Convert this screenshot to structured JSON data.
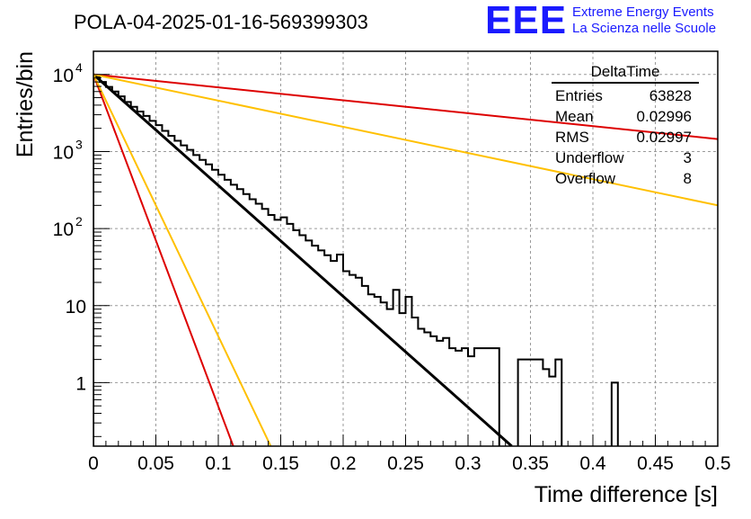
{
  "title": "POLA-04-2025-01-16-569399303",
  "branding": {
    "logo": "EEE",
    "line1": "Extreme Energy Events",
    "line2": "La Scienza nelle Scuole",
    "color": "#1a1aff"
  },
  "stats": {
    "name": "DeltaTime",
    "rows": [
      {
        "label": "Entries",
        "value": "63828"
      },
      {
        "label": "Mean",
        "value": "0.02996"
      },
      {
        "label": "RMS",
        "value": "0.02997"
      },
      {
        "label": "Underflow",
        "value": "3"
      },
      {
        "label": "Overflow",
        "value": "8"
      }
    ]
  },
  "chart_data": {
    "type": "histogram",
    "title": "POLA-04-2025-01-16-569399303",
    "xlabel": "Time difference [s]",
    "ylabel": "Entries/bin",
    "xlim": [
      0,
      0.5
    ],
    "ylim": [
      0.15,
      20000
    ],
    "yscale": "log",
    "grid": true,
    "bin_width": 0.005,
    "x_ticks": [
      "0",
      "0.05",
      "0.1",
      "0.15",
      "0.2",
      "0.25",
      "0.3",
      "0.35",
      "0.4",
      "0.45",
      "0.5"
    ],
    "y_ticks": [
      {
        "value": 1,
        "label": "1"
      },
      {
        "value": 10,
        "label": "10"
      },
      {
        "value": 100,
        "label": "10",
        "exp": "2"
      },
      {
        "value": 1000,
        "label": "10",
        "exp": "3"
      },
      {
        "value": 10000,
        "label": "10",
        "exp": "4"
      }
    ],
    "histogram": {
      "color": "#000000",
      "counts": [
        9200,
        8000,
        6900,
        6000,
        5200,
        4400,
        3800,
        3300,
        2900,
        2500,
        2200,
        1850,
        1600,
        1380,
        1200,
        1050,
        900,
        780,
        680,
        580,
        500,
        430,
        370,
        325,
        280,
        240,
        210,
        180,
        150,
        130,
        140,
        115,
        95,
        82,
        70,
        60,
        52,
        45,
        38,
        46,
        28,
        25,
        23,
        18,
        14,
        13,
        11,
        9,
        16,
        8,
        13,
        7,
        5,
        4.5,
        4,
        3.5,
        3.8,
        2.8,
        2.6,
        2.8,
        2.2,
        2.8,
        2.8,
        2.8,
        2.8,
        0,
        0,
        0,
        2,
        2,
        2,
        2,
        1.5,
        1.2,
        2,
        0,
        0,
        0,
        0,
        0,
        0,
        0,
        0,
        1,
        0,
        0,
        0,
        0,
        0,
        0,
        0,
        0,
        0,
        0,
        0,
        0,
        0,
        0,
        0,
        0
      ]
    },
    "lines": [
      {
        "color": "#000000",
        "x": [
          0,
          0.335
        ],
        "y": [
          10000,
          0.15
        ]
      },
      {
        "color": "#dd0000",
        "x": [
          0,
          0.112
        ],
        "y": [
          10000,
          0.15
        ]
      },
      {
        "color": "#ffc000",
        "x": [
          0,
          0.142
        ],
        "y": [
          10000,
          0.15
        ]
      },
      {
        "color": "#dd0000",
        "x": [
          0,
          0.5
        ],
        "y": [
          10000,
          1450
        ]
      },
      {
        "color": "#ffc000",
        "x": [
          0,
          0.5
        ],
        "y": [
          10000,
          200
        ]
      }
    ]
  }
}
